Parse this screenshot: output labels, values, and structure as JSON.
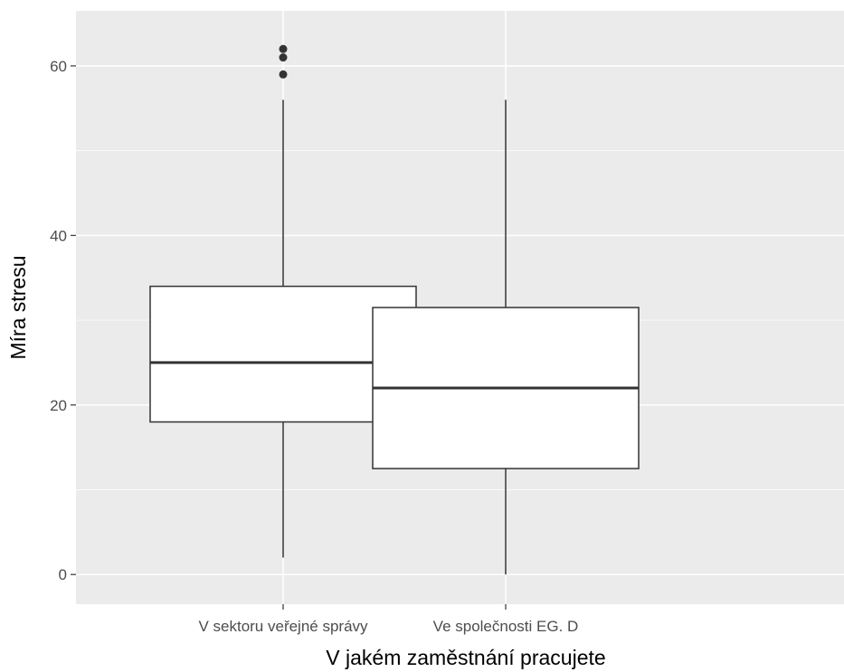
{
  "chart_data": {
    "type": "boxplot",
    "xlabel": "V jakém zaměstnání pracujete",
    "ylabel": "Míra stresu",
    "ylim": [
      -3.5,
      66.5
    ],
    "yticks": [
      0,
      20,
      40,
      60
    ],
    "grid": true,
    "colors": {
      "panel": "#ebebeb",
      "grid": "#ffffff",
      "box_fill": "#ffffff",
      "box_line": "#333333",
      "tick_text": "#4d4d4d",
      "title_text": "#000000"
    },
    "categories": [
      "V sektoru veřejné správy",
      "Ve společnosti EG. D"
    ],
    "boxes": [
      {
        "category": "V sektoru veřejné správy",
        "whisker_low": 2,
        "q1": 18,
        "median": 25,
        "q3": 34,
        "whisker_high": 56,
        "outliers": [
          59,
          61,
          62
        ]
      },
      {
        "category": "Ve společnosti EG. D",
        "whisker_low": 0,
        "q1": 12.5,
        "median": 22,
        "q3": 31.5,
        "whisker_high": 56,
        "outliers": []
      }
    ]
  }
}
